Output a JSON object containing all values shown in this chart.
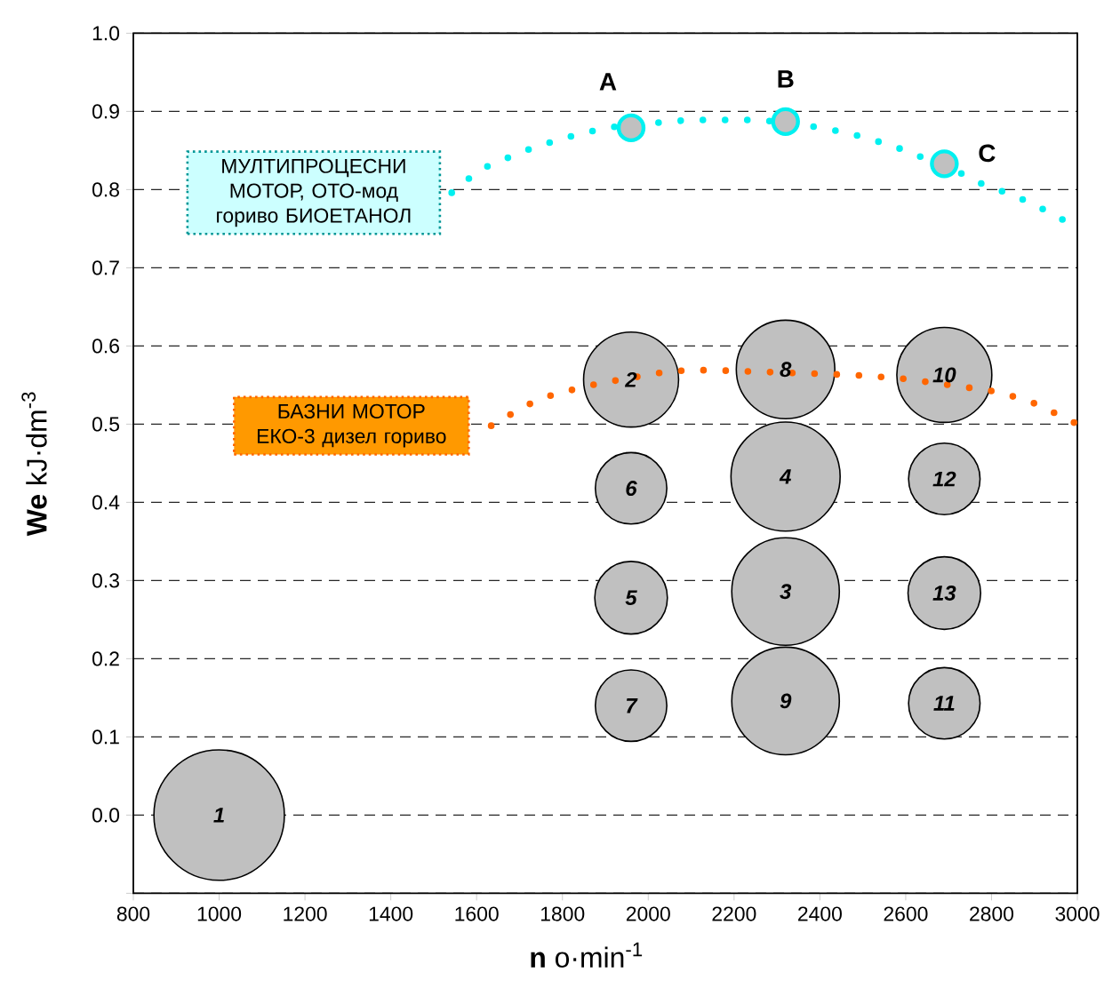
{
  "chart_data": {
    "type": "line",
    "xlabel": "**n**   o·min$^{-1}$",
    "ylabel": "**We**   kJ·dm$^{-3}$",
    "xlim": [
      800,
      3000
    ],
    "xticks": [
      800,
      1000,
      1200,
      1400,
      1600,
      1800,
      2000,
      2200,
      2400,
      2600,
      2800,
      3000
    ],
    "ylim": [
      -0.1,
      1.0
    ],
    "yticks": [
      {
        "value": -0.1,
        "label": null
      },
      {
        "value": 0,
        "label": "0.0"
      },
      0.1,
      0.2,
      0.3,
      0.4,
      0.5,
      0.6,
      0.7,
      0.8,
      0.9,
      {
        "value": 1.0,
        "label": "1.0"
      }
    ],
    "grid": "y",
    "series": [
      {
        "name": "МУЛТИПРОЦЕСНИ МОТОР, ОТО-мод гориво БИОЕТАНОЛ",
        "color": "#00f0f0",
        "line_style": "dotted",
        "x": [
          1542,
          1584,
          1629,
          1679,
          1729,
          1781,
          1832,
          1886,
          1939,
          1994,
          2046,
          2100,
          2155,
          2209,
          2262,
          2371,
          2423,
          2475,
          2527,
          2579,
          2630,
          2728,
          2779,
          2829,
          2879,
          2927,
          2975
        ],
        "values": [
          0.796,
          0.815,
          0.831,
          0.842,
          0.853,
          0.862,
          0.87,
          0.877,
          0.882,
          0.884,
          0.887,
          0.889,
          0.889,
          0.889,
          0.889,
          0.882,
          0.877,
          0.871,
          0.863,
          0.854,
          0.843,
          0.821,
          0.807,
          0.797,
          0.786,
          0.773,
          0.759
        ]
      },
      {
        "name": "БАЗНИ МОТОР ЕКО-3 дизел гориво",
        "color": "#ff6600",
        "line_style": "dotted",
        "x": [
          1634,
          1681,
          1728,
          1779,
          1831,
          1884,
          2042,
          2096,
          2150,
          2205,
          2259,
          2419,
          2475,
          2528,
          2583,
          2796,
          2847,
          2898,
          2948,
          2996
        ],
        "values": [
          0.498,
          0.513,
          0.527,
          0.538,
          0.545,
          0.552,
          0.567,
          0.569,
          0.569,
          0.568,
          0.567,
          0.564,
          0.563,
          0.561,
          0.559,
          0.543,
          0.536,
          0.527,
          0.514,
          0.501
        ]
      },
      {
        "type": "scatter",
        "color": "#c0c0c0",
        "marker": "circle",
        "x": [
          1960,
          2320,
          2690
        ],
        "values": [
          0.879,
          0.887,
          0.833
        ]
      },
      {
        "type": "bubble",
        "color": "#c0c0c0",
        "x": [
          1000,
          1960,
          2320,
          2320,
          1960,
          1960,
          1960,
          2320,
          2320,
          2690,
          2690,
          2690,
          2690
        ],
        "values": [
          0.0,
          0.557,
          0.286,
          0.433,
          0.278,
          0.418,
          0.14,
          0.57,
          0.146,
          0.563,
          0.143,
          0.43,
          0.284
        ],
        "sizes": [
          1,
          0.53,
          0.68,
          0.7,
          0.31,
          0.3,
          0.3,
          0.57,
          0.68,
          0.53,
          0.3,
          0.3,
          0.31
        ]
      }
    ],
    "annotations": [
      {
        "text": "1",
        "x": 1000,
        "y": 0.0
      },
      {
        "text": "2",
        "x": 1960,
        "y": 0.557
      },
      {
        "text": "3",
        "x": 2320,
        "y": 0.286
      },
      {
        "text": "4",
        "x": 2320,
        "y": 0.433
      },
      {
        "text": "5",
        "x": 1960,
        "y": 0.278
      },
      {
        "text": "6",
        "x": 1960,
        "y": 0.418
      },
      {
        "text": "7",
        "x": 1960,
        "y": 0.14
      },
      {
        "text": "8",
        "x": 2320,
        "y": 0.57
      },
      {
        "text": "9",
        "x": 2320,
        "y": 0.146
      },
      {
        "text": "10",
        "x": 2690,
        "y": 0.563
      },
      {
        "text": "11",
        "x": 2690,
        "y": 0.143
      },
      {
        "text": "12",
        "x": 2690,
        "y": 0.43
      },
      {
        "text": "13",
        "x": 2690,
        "y": 0.284
      },
      {
        "text": "A",
        "x": 1960,
        "y": 0.879
      },
      {
        "text": "B",
        "x": 2320,
        "y": 0.887
      },
      {
        "text": "C",
        "x": 2690,
        "y": 0.833
      }
    ]
  }
}
